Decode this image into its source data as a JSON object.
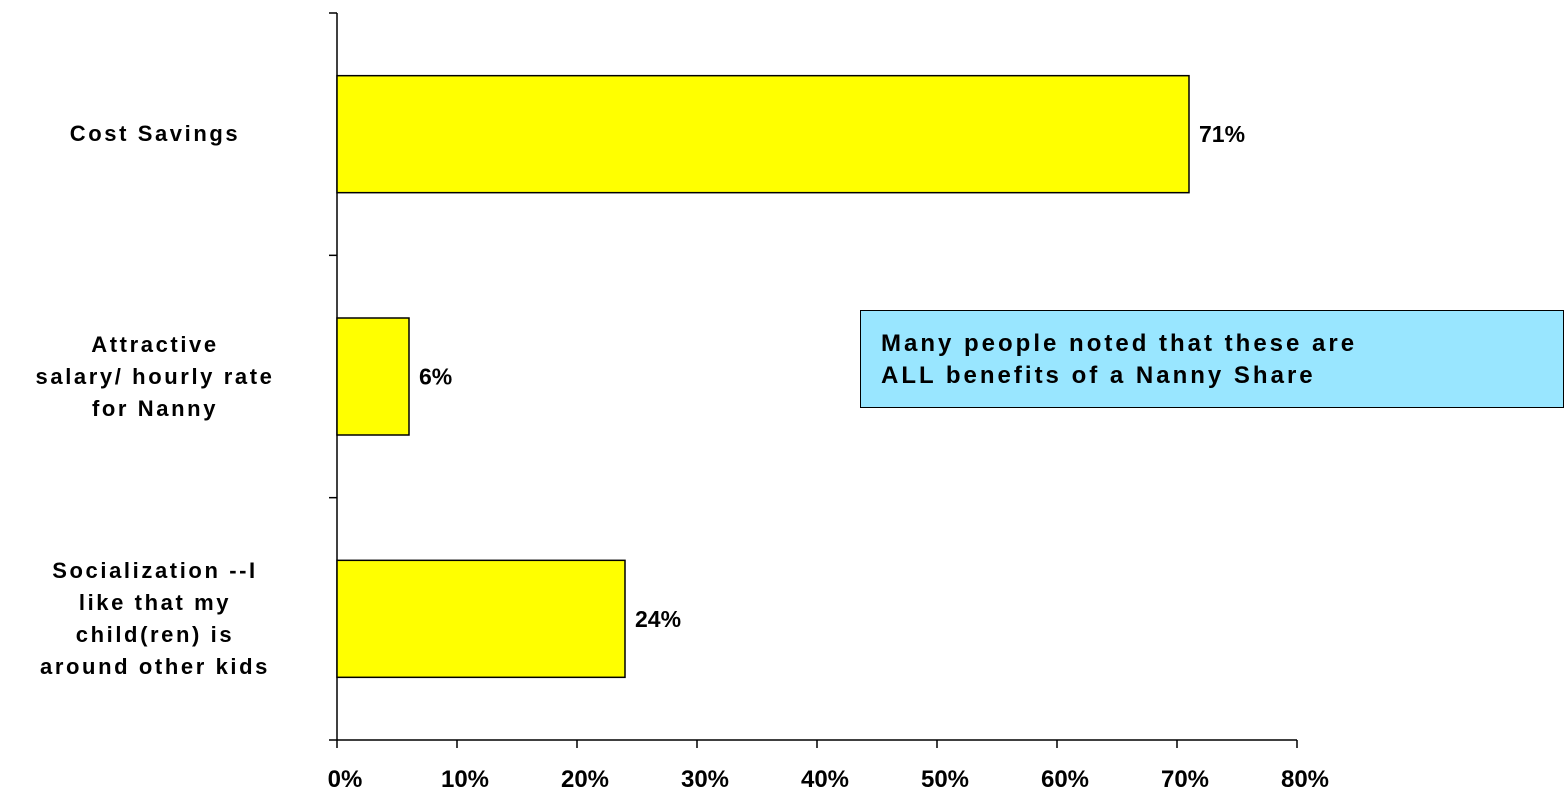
{
  "chart_data": {
    "type": "bar",
    "orientation": "horizontal",
    "categories": [
      "Cost Savings",
      "Attractive\nsalary/ hourly rate\nfor Nanny",
      "Socialization --I\nlike that my\nchild(ren) is\naround other kids"
    ],
    "values": [
      71,
      6,
      24
    ],
    "data_labels": [
      "71%",
      "6%",
      "24%"
    ],
    "x_ticks": [
      "0%",
      "10%",
      "20%",
      "30%",
      "40%",
      "50%",
      "60%",
      "70%",
      "80%"
    ],
    "xlim": [
      0,
      80
    ],
    "bar_color": "#ffff00",
    "grid": false,
    "title": "",
    "xlabel": "",
    "ylabel": ""
  },
  "annotation": {
    "text": "Many people noted that these are\nALL benefits of a Nanny Share",
    "background": "#99e6ff"
  }
}
